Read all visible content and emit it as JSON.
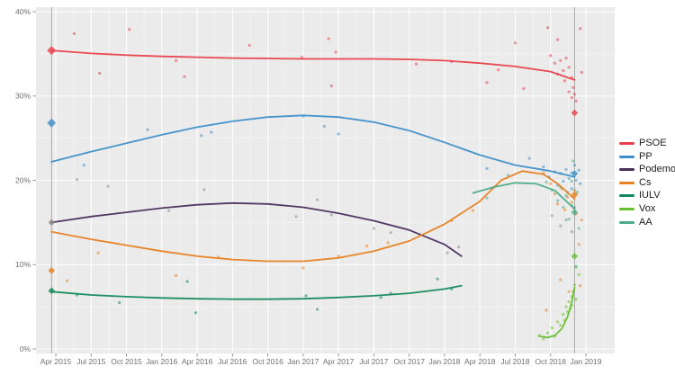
{
  "chart_data": {
    "type": "scatter",
    "title": "",
    "xlabel": "",
    "ylabel": "",
    "grid": true,
    "legend_position": "right",
    "x_axis": {
      "ticks": [
        "Apr 2015",
        "Jul 2015",
        "Oct 2015",
        "Jan 2016",
        "Apr 2016",
        "Jul 2016",
        "Oct 2016",
        "Jan 2017",
        "Apr 2017",
        "Jul 2017",
        "Oct 2017",
        "Jan 2018",
        "Apr 2018",
        "Jul 2018",
        "Oct 2018",
        "Jan 2019"
      ],
      "tick_start_t": 2015.25,
      "tick_step_t": 0.25,
      "range_t": [
        2015.11,
        2019.2
      ]
    },
    "y_axis": {
      "ticks": [
        "0%",
        "10%",
        "20%",
        "30%",
        "40%"
      ],
      "tick_values": [
        0,
        10,
        20,
        30,
        40
      ],
      "range": [
        -0.6,
        40.6
      ]
    },
    "election_lines_t": [
      2015.22,
      2018.92
    ],
    "colors": {
      "panel": "#ebebeb",
      "grid_major": "#ffffff",
      "grid_minor": "#f4f4f4",
      "axis_text": "#6f6f6f",
      "tick_mark": "#8a8a8a",
      "election_line": "#ababab"
    },
    "series": [
      {
        "name": "PSOE",
        "color": "#e8404b",
        "trend": [
          [
            2015.22,
            35.4
          ],
          [
            2015.5,
            35.05
          ],
          [
            2015.75,
            34.85
          ],
          [
            2016.0,
            34.7
          ],
          [
            2016.25,
            34.6
          ],
          [
            2016.5,
            34.5
          ],
          [
            2016.75,
            34.45
          ],
          [
            2017.0,
            34.4
          ],
          [
            2017.25,
            34.4
          ],
          [
            2017.5,
            34.4
          ],
          [
            2017.75,
            34.35
          ],
          [
            2018.0,
            34.2
          ],
          [
            2018.25,
            33.9
          ],
          [
            2018.5,
            33.5
          ],
          [
            2018.75,
            32.9
          ],
          [
            2018.92,
            31.9
          ]
        ],
        "points": [
          [
            2015.38,
            37.4
          ],
          [
            2015.56,
            32.7
          ],
          [
            2015.77,
            37.9
          ],
          [
            2016.1,
            34.2
          ],
          [
            2016.16,
            32.3
          ],
          [
            2016.62,
            36.0
          ],
          [
            2016.99,
            34.6
          ],
          [
            2017.18,
            36.8
          ],
          [
            2017.23,
            35.2
          ],
          [
            2017.2,
            31.2
          ],
          [
            2017.8,
            33.8
          ],
          [
            2018.05,
            34.1
          ],
          [
            2018.3,
            31.6
          ],
          [
            2018.38,
            33.1
          ],
          [
            2018.5,
            36.3
          ],
          [
            2018.56,
            30.9
          ],
          [
            2018.73,
            38.1
          ],
          [
            2018.75,
            34.8
          ],
          [
            2018.78,
            33.9
          ],
          [
            2018.8,
            36.7
          ],
          [
            2018.8,
            32.6
          ],
          [
            2018.82,
            34.2
          ],
          [
            2018.84,
            33.0
          ],
          [
            2018.85,
            31.8
          ],
          [
            2018.86,
            34.5
          ],
          [
            2018.88,
            33.4
          ],
          [
            2018.88,
            30.5
          ],
          [
            2018.9,
            32.2
          ],
          [
            2018.9,
            29.8
          ],
          [
            2018.91,
            31.0
          ],
          [
            2018.92,
            30.2
          ],
          [
            2018.93,
            29.4
          ],
          [
            2018.96,
            38.0
          ],
          [
            2018.97,
            32.8
          ]
        ],
        "results": [
          [
            2015.22,
            35.4,
            5
          ],
          [
            2018.92,
            28.0,
            3.8
          ]
        ]
      },
      {
        "name": "PP",
        "color": "#3d8fc9",
        "trend": [
          [
            2015.22,
            22.2
          ],
          [
            2015.5,
            23.4
          ],
          [
            2015.75,
            24.4
          ],
          [
            2016.0,
            25.4
          ],
          [
            2016.25,
            26.3
          ],
          [
            2016.5,
            27.0
          ],
          [
            2016.75,
            27.5
          ],
          [
            2017.0,
            27.7
          ],
          [
            2017.25,
            27.5
          ],
          [
            2017.5,
            26.9
          ],
          [
            2017.75,
            25.9
          ],
          [
            2018.0,
            24.5
          ],
          [
            2018.25,
            23.0
          ],
          [
            2018.5,
            21.8
          ],
          [
            2018.75,
            21.1
          ],
          [
            2018.92,
            20.4
          ]
        ],
        "points": [
          [
            2015.45,
            21.8
          ],
          [
            2015.9,
            26.0
          ],
          [
            2016.28,
            25.3
          ],
          [
            2016.35,
            25.7
          ],
          [
            2017.0,
            27.6
          ],
          [
            2017.15,
            26.4
          ],
          [
            2017.25,
            25.5
          ],
          [
            2018.3,
            21.4
          ],
          [
            2018.6,
            22.6
          ],
          [
            2018.7,
            21.6
          ],
          [
            2018.74,
            20.4
          ],
          [
            2018.78,
            21.0
          ],
          [
            2018.8,
            19.4
          ],
          [
            2018.82,
            20.8
          ],
          [
            2018.84,
            19.9
          ],
          [
            2018.86,
            21.3
          ],
          [
            2018.87,
            18.6
          ],
          [
            2018.88,
            20.2
          ],
          [
            2018.9,
            19.0
          ],
          [
            2018.9,
            20.9
          ],
          [
            2018.92,
            21.8
          ],
          [
            2018.93,
            20.0
          ],
          [
            2018.95,
            21.2
          ],
          [
            2018.96,
            19.6
          ]
        ],
        "results": [
          [
            2015.22,
            26.8,
            5
          ],
          [
            2018.92,
            20.8,
            3.8
          ]
        ]
      },
      {
        "name": "Podemos",
        "color": "#4b2d5e",
        "point_color": "#8a8a8a",
        "trend": [
          [
            2015.22,
            15.0
          ],
          [
            2015.5,
            15.7
          ],
          [
            2015.75,
            16.2
          ],
          [
            2016.0,
            16.7
          ],
          [
            2016.25,
            17.1
          ],
          [
            2016.5,
            17.3
          ],
          [
            2016.75,
            17.2
          ],
          [
            2017.0,
            16.8
          ],
          [
            2017.25,
            16.1
          ],
          [
            2017.5,
            15.2
          ],
          [
            2017.75,
            14.1
          ],
          [
            2018.0,
            12.4
          ],
          [
            2018.12,
            11.0
          ]
        ],
        "points": [
          [
            2015.4,
            20.1
          ],
          [
            2015.62,
            19.3
          ],
          [
            2016.05,
            16.4
          ],
          [
            2016.3,
            18.9
          ],
          [
            2016.95,
            15.7
          ],
          [
            2017.1,
            17.7
          ],
          [
            2017.2,
            15.9
          ],
          [
            2017.5,
            14.3
          ],
          [
            2017.62,
            13.8
          ],
          [
            2018.02,
            11.4
          ],
          [
            2018.1,
            12.1
          ],
          [
            2018.76,
            15.8
          ],
          [
            2018.82,
            14.6
          ],
          [
            2018.86,
            15.3
          ],
          [
            2018.9,
            13.9
          ],
          [
            2018.92,
            16.8
          ]
        ],
        "results": [
          [
            2015.22,
            15.0,
            3.8
          ]
        ]
      },
      {
        "name": "Cs",
        "color": "#e8801f",
        "trend": [
          [
            2015.22,
            13.9
          ],
          [
            2015.5,
            13.0
          ],
          [
            2015.75,
            12.3
          ],
          [
            2016.0,
            11.6
          ],
          [
            2016.25,
            11.0
          ],
          [
            2016.5,
            10.6
          ],
          [
            2016.75,
            10.4
          ],
          [
            2017.0,
            10.4
          ],
          [
            2017.25,
            10.8
          ],
          [
            2017.5,
            11.6
          ],
          [
            2017.75,
            12.8
          ],
          [
            2018.0,
            14.8
          ],
          [
            2018.25,
            17.5
          ],
          [
            2018.4,
            20.0
          ],
          [
            2018.55,
            21.1
          ],
          [
            2018.7,
            20.7
          ],
          [
            2018.8,
            19.6
          ],
          [
            2018.92,
            17.8
          ]
        ],
        "points": [
          [
            2015.33,
            8.1
          ],
          [
            2015.55,
            11.4
          ],
          [
            2016.1,
            8.7
          ],
          [
            2016.4,
            10.9
          ],
          [
            2017.0,
            9.6
          ],
          [
            2017.25,
            11.0
          ],
          [
            2017.45,
            12.2
          ],
          [
            2017.6,
            12.6
          ],
          [
            2018.05,
            15.2
          ],
          [
            2018.2,
            16.4
          ],
          [
            2018.7,
            20.9
          ],
          [
            2018.72,
            4.6
          ],
          [
            2018.75,
            19.6
          ],
          [
            2018.78,
            18.4
          ],
          [
            2018.8,
            17.2
          ],
          [
            2018.82,
            8.2
          ],
          [
            2018.83,
            19.0
          ],
          [
            2018.85,
            16.5
          ],
          [
            2018.87,
            18.0
          ],
          [
            2018.88,
            6.8
          ],
          [
            2018.9,
            17.4
          ],
          [
            2018.92,
            18.8
          ],
          [
            2018.93,
            16.0
          ],
          [
            2018.95,
            12.4
          ],
          [
            2018.96,
            7.5
          ],
          [
            2018.97,
            15.3
          ]
        ],
        "results": [
          [
            2015.22,
            9.3,
            3.8
          ],
          [
            2018.92,
            18.3,
            3.8
          ]
        ]
      },
      {
        "name": "IULV",
        "color": "#12895c",
        "trend": [
          [
            2015.22,
            6.8
          ],
          [
            2015.5,
            6.4
          ],
          [
            2015.75,
            6.2
          ],
          [
            2016.0,
            6.05
          ],
          [
            2016.25,
            5.95
          ],
          [
            2016.5,
            5.9
          ],
          [
            2016.75,
            5.9
          ],
          [
            2017.0,
            5.95
          ],
          [
            2017.25,
            6.1
          ],
          [
            2017.5,
            6.3
          ],
          [
            2017.75,
            6.6
          ],
          [
            2018.0,
            7.1
          ],
          [
            2018.12,
            7.5
          ]
        ],
        "points": [
          [
            2015.4,
            6.4
          ],
          [
            2015.7,
            5.5
          ],
          [
            2016.18,
            8.0
          ],
          [
            2016.24,
            4.3
          ],
          [
            2017.02,
            6.3
          ],
          [
            2017.1,
            4.7
          ],
          [
            2017.55,
            6.1
          ],
          [
            2017.62,
            6.6
          ],
          [
            2017.95,
            8.3
          ],
          [
            2018.05,
            7.1
          ]
        ],
        "results": [
          [
            2015.22,
            6.9,
            3.8
          ]
        ]
      },
      {
        "name": "Vox",
        "color": "#67bf2e",
        "trend": [
          [
            2018.67,
            1.5
          ],
          [
            2018.73,
            1.35
          ],
          [
            2018.78,
            1.6
          ],
          [
            2018.83,
            2.4
          ],
          [
            2018.87,
            3.8
          ],
          [
            2018.9,
            5.5
          ],
          [
            2018.92,
            7.3
          ]
        ],
        "points": [
          [
            2018.67,
            1.6
          ],
          [
            2018.7,
            1.2
          ],
          [
            2018.73,
            1.9
          ],
          [
            2018.76,
            2.5
          ],
          [
            2018.78,
            1.5
          ],
          [
            2018.8,
            3.2
          ],
          [
            2018.82,
            2.8
          ],
          [
            2018.84,
            4.1
          ],
          [
            2018.85,
            3.4
          ],
          [
            2018.86,
            5.0
          ],
          [
            2018.87,
            4.4
          ],
          [
            2018.88,
            5.6
          ],
          [
            2018.89,
            4.8
          ],
          [
            2018.9,
            6.2
          ],
          [
            2018.9,
            5.2
          ],
          [
            2018.91,
            6.8
          ],
          [
            2018.92,
            7.6
          ],
          [
            2018.93,
            5.9
          ],
          [
            2018.93,
            9.7
          ],
          [
            2018.95,
            8.8
          ]
        ],
        "results": [
          [
            2018.92,
            11.0,
            3.8
          ]
        ]
      },
      {
        "name": "AA",
        "color": "#4dab87",
        "trend": [
          [
            2018.2,
            18.5
          ],
          [
            2018.35,
            19.2
          ],
          [
            2018.5,
            19.7
          ],
          [
            2018.65,
            19.6
          ],
          [
            2018.78,
            18.8
          ],
          [
            2018.92,
            16.6
          ]
        ],
        "points": [
          [
            2018.3,
            17.9
          ],
          [
            2018.45,
            20.6
          ],
          [
            2018.72,
            19.8
          ],
          [
            2018.76,
            18.8
          ],
          [
            2018.8,
            17.6
          ],
          [
            2018.82,
            19.2
          ],
          [
            2018.84,
            16.8
          ],
          [
            2018.86,
            18.2
          ],
          [
            2018.88,
            15.4
          ],
          [
            2018.9,
            17.0
          ],
          [
            2018.9,
            19.9
          ],
          [
            2018.91,
            22.3
          ],
          [
            2018.92,
            16.3
          ],
          [
            2018.93,
            9.8
          ],
          [
            2018.94,
            18.6
          ],
          [
            2018.95,
            14.3
          ]
        ],
        "results": [
          [
            2018.92,
            16.2,
            3.8
          ]
        ]
      }
    ]
  },
  "legend": {
    "items": [
      "PSOE",
      "PP",
      "Podemos",
      "Cs",
      "IULV",
      "Vox",
      "AA"
    ]
  }
}
